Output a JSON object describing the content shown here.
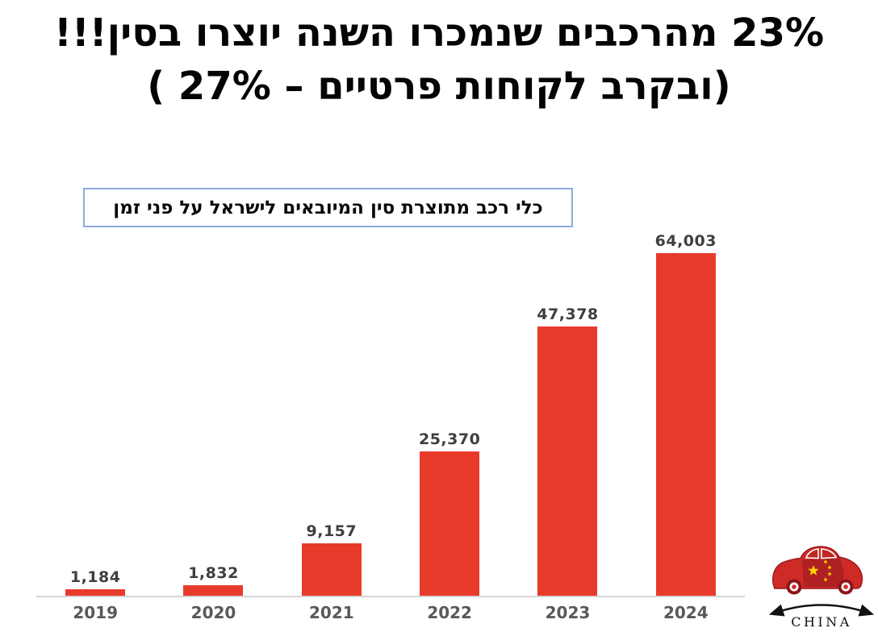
{
  "title": {
    "line1": "23%  מהרכבים שנמכרו השנה יוצרו בסין!!!",
    "line2": "(ובקרב לקוחות פרטיים – 27% )"
  },
  "chart_label": "כלי רכב מתוצרת סין המיובאים לישראל על פני זמן",
  "chart_data": {
    "type": "bar",
    "title": "כלי רכב מתוצרת סין המיובאים לישראל על פני זמן",
    "categories": [
      "2019",
      "2020",
      "2021",
      "2022",
      "2023",
      "2024"
    ],
    "values": [
      1184,
      1832,
      9157,
      25370,
      47378,
      64003
    ],
    "value_labels": [
      "1,184",
      "1,832",
      "9,157",
      "25,370",
      "47,378",
      "64,003"
    ],
    "xlabel": "",
    "ylabel": "",
    "ylim": [
      0,
      64003
    ],
    "grid": false,
    "legend": false,
    "bar_color": "#E83A2B",
    "value_label_color": "#3F3F3F",
    "axis_label_color": "#595959",
    "axis_line_color": "#D6D6D6"
  },
  "logo": {
    "name": "china-car-logo",
    "label": "CHINA",
    "colors": {
      "body": "#CE2B26",
      "panel": "#A91F22",
      "outline": "#9E1B1C",
      "star": "#FFD400",
      "tire": "#8E1418",
      "arc": "#111111"
    }
  },
  "colors": {
    "background": "#FFFFFF",
    "title_text": "#040404",
    "caption_border": "#8FAADC"
  }
}
